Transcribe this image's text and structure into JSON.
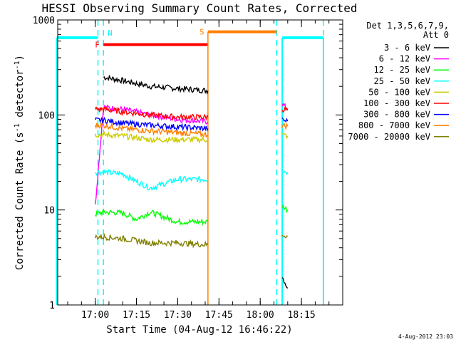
{
  "chart_data": {
    "type": "line",
    "title": "HESSI Observing Summary Count Rates, Corrected",
    "xlabel": "Start Time (04-Aug-12 16:46:22)",
    "ylabel": "Corrected Count Rate (s",
    "ylabel_exp1": "-1",
    "ylabel_mid": " detector",
    "ylabel_exp2": "-1",
    "ylabel_end": ")",
    "yscale": "log",
    "ylim": [
      1,
      1000
    ],
    "xlim": [
      "16:46:22",
      "18:30:00"
    ],
    "x_ticks": [
      "17:00",
      "17:15",
      "17:30",
      "17:45",
      "18:00",
      "18:15"
    ],
    "y_ticks": [
      "1",
      "10",
      "100",
      "1000"
    ],
    "legend_title": [
      "Det 1,3,5,6,7,9,",
      "Att 0"
    ],
    "timestamp": "4-Aug-2012 23:03",
    "flags": {
      "F": {
        "label": "F",
        "color": "#ff0000",
        "start": "17:03",
        "end": "17:41",
        "level": 550
      },
      "N": {
        "label": "N",
        "color": "#00ffff",
        "at": "17:03"
      },
      "S": {
        "label": "S",
        "color": "#ff7f00",
        "start": "17:41",
        "end": "18:06",
        "level": 750
      },
      "cyan_left": {
        "start": "16:46",
        "end": "17:01",
        "level": 650
      },
      "cyan_right": {
        "start": "18:08",
        "end": "18:23",
        "level": 650
      },
      "dashed_lines": [
        "17:01",
        "17:03",
        "18:06",
        "18:23"
      ]
    },
    "series": [
      {
        "name": "3 - 6 keV",
        "color": "#000000",
        "segments": [
          {
            "t": [
              "17:03",
              "17:10",
              "17:20",
              "17:30",
              "17:41"
            ],
            "y": [
              250,
              230,
              200,
              190,
              180
            ]
          },
          {
            "t": [
              "18:08",
              "18:10"
            ],
            "y": [
              2,
              1.5
            ]
          }
        ]
      },
      {
        "name": "6 - 12 keV",
        "color": "#ff00ff",
        "segments": [
          {
            "t": [
              "17:00",
              "17:03",
              "17:10",
              "17:20",
              "17:30",
              "17:41"
            ],
            "y": [
              11,
              120,
              115,
              100,
              90,
              85
            ]
          },
          {
            "t": [
              "18:08",
              "18:10"
            ],
            "y": [
              130,
              115
            ]
          }
        ]
      },
      {
        "name": "12 - 25 keV",
        "color": "#00ff00",
        "segments": [
          {
            "t": [
              "17:00",
              "17:03",
              "17:10",
              "17:15",
              "17:20",
              "17:30",
              "17:41"
            ],
            "y": [
              9,
              9.5,
              9.3,
              8,
              9.5,
              7.5,
              7.5
            ]
          },
          {
            "t": [
              "18:08",
              "18:10"
            ],
            "y": [
              11,
              10
            ]
          }
        ]
      },
      {
        "name": "25 - 50 keV",
        "color": "#00ffff",
        "segments": [
          {
            "t": [
              "17:00",
              "17:03",
              "17:10",
              "17:15",
              "17:20",
              "17:30",
              "17:41"
            ],
            "y": [
              25,
              25,
              24,
              20,
              17,
              21,
              21
            ]
          },
          {
            "t": [
              "18:08",
              "18:10"
            ],
            "y": [
              26,
              25
            ]
          }
        ]
      },
      {
        "name": "50 - 100 keV",
        "color": "#cccc00",
        "segments": [
          {
            "t": [
              "17:00",
              "17:03",
              "17:10",
              "17:20",
              "17:30",
              "17:41"
            ],
            "y": [
              62,
              62,
              60,
              55,
              55,
              55
            ]
          },
          {
            "t": [
              "18:08",
              "18:10"
            ],
            "y": [
              62,
              60
            ]
          }
        ]
      },
      {
        "name": "100 - 300 keV",
        "color": "#ff0000",
        "segments": [
          {
            "t": [
              "17:00",
              "17:03",
              "17:10",
              "17:20",
              "17:30",
              "17:41"
            ],
            "y": [
              115,
              115,
              108,
              100,
              95,
              95
            ]
          },
          {
            "t": [
              "18:08",
              "18:10"
            ],
            "y": [
              115,
              112
            ]
          }
        ]
      },
      {
        "name": "300 - 800 keV",
        "color": "#0000ff",
        "segments": [
          {
            "t": [
              "17:00",
              "17:03",
              "17:10",
              "17:20",
              "17:30",
              "17:41"
            ],
            "y": [
              88,
              88,
              82,
              78,
              75,
              72
            ]
          },
          {
            "t": [
              "18:08",
              "18:10"
            ],
            "y": [
              88,
              86
            ]
          }
        ]
      },
      {
        "name": "800 - 7000 keV",
        "color": "#ff7f00",
        "segments": [
          {
            "t": [
              "17:00",
              "17:03",
              "17:10",
              "17:20",
              "17:30",
              "17:41"
            ],
            "y": [
              78,
              78,
              72,
              68,
              65,
              62
            ]
          },
          {
            "t": [
              "18:08",
              "18:10"
            ],
            "y": [
              78,
              76
            ]
          }
        ]
      },
      {
        "name": "7000 - 20000 keV",
        "color": "#808000",
        "segments": [
          {
            "t": [
              "17:00",
              "17:03",
              "17:10",
              "17:20",
              "17:30",
              "17:41"
            ],
            "y": [
              5.2,
              5.2,
              5,
              4.5,
              4.5,
              4.3
            ]
          },
          {
            "t": [
              "18:08",
              "18:10"
            ],
            "y": [
              5.5,
              5.3
            ]
          }
        ]
      }
    ]
  }
}
